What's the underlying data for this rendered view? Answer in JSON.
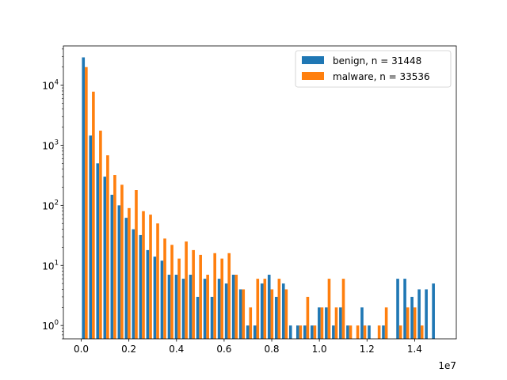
{
  "chart_data": {
    "type": "bar",
    "title": "",
    "xlabel": "",
    "ylabel": "",
    "x_offset_label": "1e7",
    "x_scale": 10000000,
    "xlim": [
      -0.075,
      1.575
    ],
    "xticks": [
      "0.0",
      "0.2",
      "0.4",
      "0.6",
      "0.8",
      "1.0",
      "1.2",
      "1.4"
    ],
    "yscale": "log",
    "ylim": [
      0.6,
      45000
    ],
    "yticks": [
      {
        "value": 1,
        "base": "10",
        "exp": "0"
      },
      {
        "value": 10,
        "base": "10",
        "exp": "1"
      },
      {
        "value": 100,
        "base": "10",
        "exp": "2"
      },
      {
        "value": 1000,
        "base": "10",
        "exp": "3"
      },
      {
        "value": 10000,
        "base": "10",
        "exp": "4"
      }
    ],
    "legend_position": "top-right",
    "bin_count": 50,
    "bin_range": [
      0,
      1.5
    ],
    "series": [
      {
        "name": "benign, n = 31448",
        "color": "#1f77b4",
        "values": [
          29000,
          1450,
          500,
          300,
          150,
          100,
          62,
          40,
          32,
          18,
          14,
          12,
          7,
          7,
          6,
          7,
          3,
          6,
          3,
          6,
          5,
          7,
          4,
          1,
          1,
          5,
          7,
          3,
          5,
          1,
          1,
          1,
          1,
          2,
          2,
          1,
          2,
          1,
          0,
          2,
          1,
          0,
          1,
          0,
          6,
          6,
          3,
          4,
          4,
          5
        ]
      },
      {
        "name": "malware, n = 33536",
        "color": "#ff7f0e",
        "values": [
          20000,
          7800,
          1750,
          680,
          320,
          220,
          90,
          180,
          80,
          70,
          50,
          28,
          22,
          13,
          25,
          18,
          15,
          7,
          16,
          13,
          16,
          7,
          4,
          2,
          6,
          6,
          4,
          6,
          4,
          0,
          1,
          3,
          1,
          2,
          6,
          2,
          6,
          1,
          1,
          1,
          0,
          1,
          2,
          0,
          1,
          2,
          2,
          1,
          0,
          0
        ]
      }
    ]
  }
}
